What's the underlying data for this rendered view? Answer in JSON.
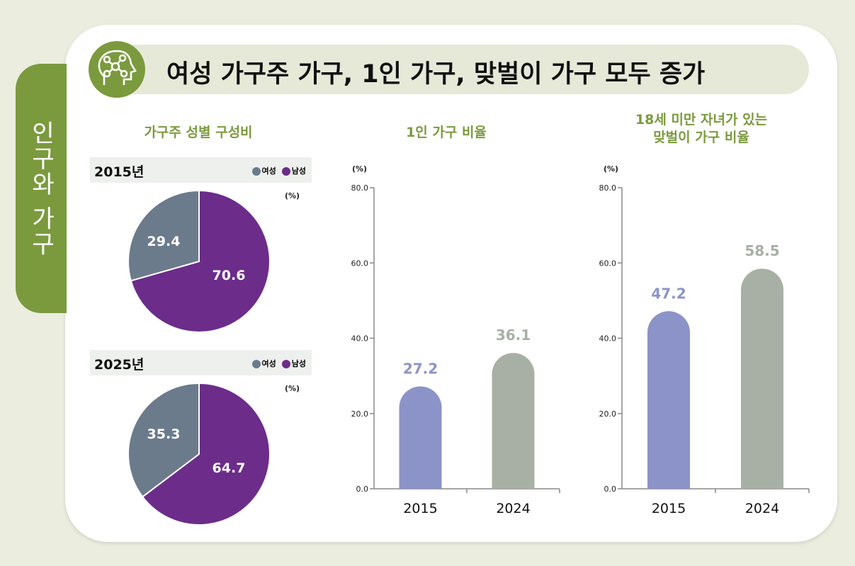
{
  "side_tab": "인구와 가구",
  "title": "여성 가구주 가구, 1인 가구, 맞벌이 가구 모두 증가",
  "title_icon": "head-network-icon",
  "colors": {
    "green": "#7b9a3e",
    "female": "#6b7b8b",
    "male": "#6c2c8a",
    "bar2015": "#8c93c8",
    "bar2024": "#a8b0a5"
  },
  "chart_data": [
    {
      "type": "pie",
      "title": "가구주 성별 구성비",
      "subtitle": "2015년",
      "unit": "(%)",
      "legend": [
        "여성",
        "남성"
      ],
      "slices": [
        {
          "label": "여성",
          "value": 29.4
        },
        {
          "label": "남성",
          "value": 70.6
        }
      ]
    },
    {
      "type": "pie",
      "subtitle": "2025년",
      "unit": "(%)",
      "legend": [
        "여성",
        "남성"
      ],
      "slices": [
        {
          "label": "여성",
          "value": 35.3
        },
        {
          "label": "남성",
          "value": 64.7
        }
      ]
    },
    {
      "type": "bar",
      "title": "1인 가구 비율",
      "ylabel": "(%)",
      "ylim": [
        0,
        80
      ],
      "yticks": [
        "0.0",
        "20.0",
        "40.0",
        "60.0",
        "80.0"
      ],
      "categories": [
        "2015",
        "2024"
      ],
      "values": [
        27.2,
        36.1
      ],
      "labels": [
        "27.2",
        "36.1"
      ]
    },
    {
      "type": "bar",
      "title": "18세 미만 자녀가 있는 맞벌이 가구 비율",
      "title_lines": [
        "18세 미만 자녀가 있는",
        "맞벌이 가구 비율"
      ],
      "ylabel": "(%)",
      "ylim": [
        0,
        80
      ],
      "yticks": [
        "0.0",
        "20.0",
        "40.0",
        "60.0",
        "80.0"
      ],
      "categories": [
        "2015",
        "2024"
      ],
      "values": [
        47.2,
        58.5
      ],
      "labels": [
        "47.2",
        "58.5"
      ]
    }
  ]
}
